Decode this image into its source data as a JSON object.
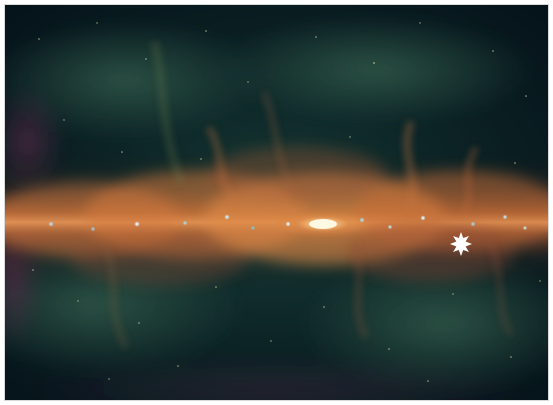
{
  "image": {
    "subject": "radio-telescope-milky-way-panorama",
    "palette": {
      "background_dark": "#06121a",
      "background_teal": "#0c2b2e",
      "haze_green": "#2f5a3e",
      "haze_purple": "#4b2240",
      "band_orange": "#d9823f",
      "band_core": "#fff1c8",
      "marker": "#ffffff"
    },
    "marker_icon": "star-burst-icon"
  }
}
